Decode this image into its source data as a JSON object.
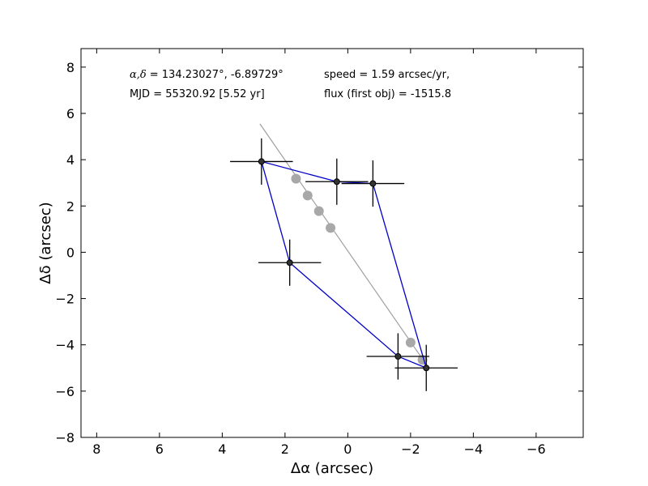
{
  "chart_data": {
    "type": "scatter",
    "title": "",
    "xlabel": "Δα (arcsec)",
    "ylabel": "Δδ (arcsec)",
    "xlim": [
      8.5,
      -7.5
    ],
    "ylim": [
      -8,
      8.8
    ],
    "x_inverted": true,
    "xticks": [
      8,
      6,
      4,
      2,
      0,
      -2,
      -4,
      -6
    ],
    "yticks": [
      8,
      6,
      4,
      2,
      0,
      -2,
      -4,
      -6,
      -8
    ],
    "grid": false,
    "annotations": {
      "radec_label": "α,δ",
      "radec_value": "= 134.23027°, -6.89729°",
      "mjd": "MJD = 55320.92 [5.52 yr]",
      "speed": "speed = 1.59 arcsec/yr,",
      "flux": "flux (first obj) = -1515.8"
    },
    "fit_line": {
      "color": "#a0a0a0",
      "x": [
        2.8,
        -2.45
      ],
      "y": [
        5.55,
        -4.75
      ]
    },
    "predicted_points": {
      "color": "#a8a8a8",
      "x": [
        1.65,
        1.28,
        0.92,
        0.55,
        -2.0,
        -2.38
      ],
      "y": [
        3.18,
        2.45,
        1.78,
        1.05,
        -3.9,
        -4.65
      ]
    },
    "observations": {
      "color": "#000000",
      "path_color": "#0000c8",
      "x": [
        1.85,
        2.75,
        0.35,
        -0.8,
        -2.5,
        -1.6
      ],
      "y": [
        -0.45,
        3.92,
        3.05,
        2.97,
        -5.0,
        -4.5
      ],
      "xerr": [
        1.0,
        1.0,
        1.0,
        1.0,
        1.0,
        1.0
      ],
      "yerr": [
        1.0,
        1.0,
        1.0,
        1.0,
        1.0,
        1.0
      ]
    }
  }
}
